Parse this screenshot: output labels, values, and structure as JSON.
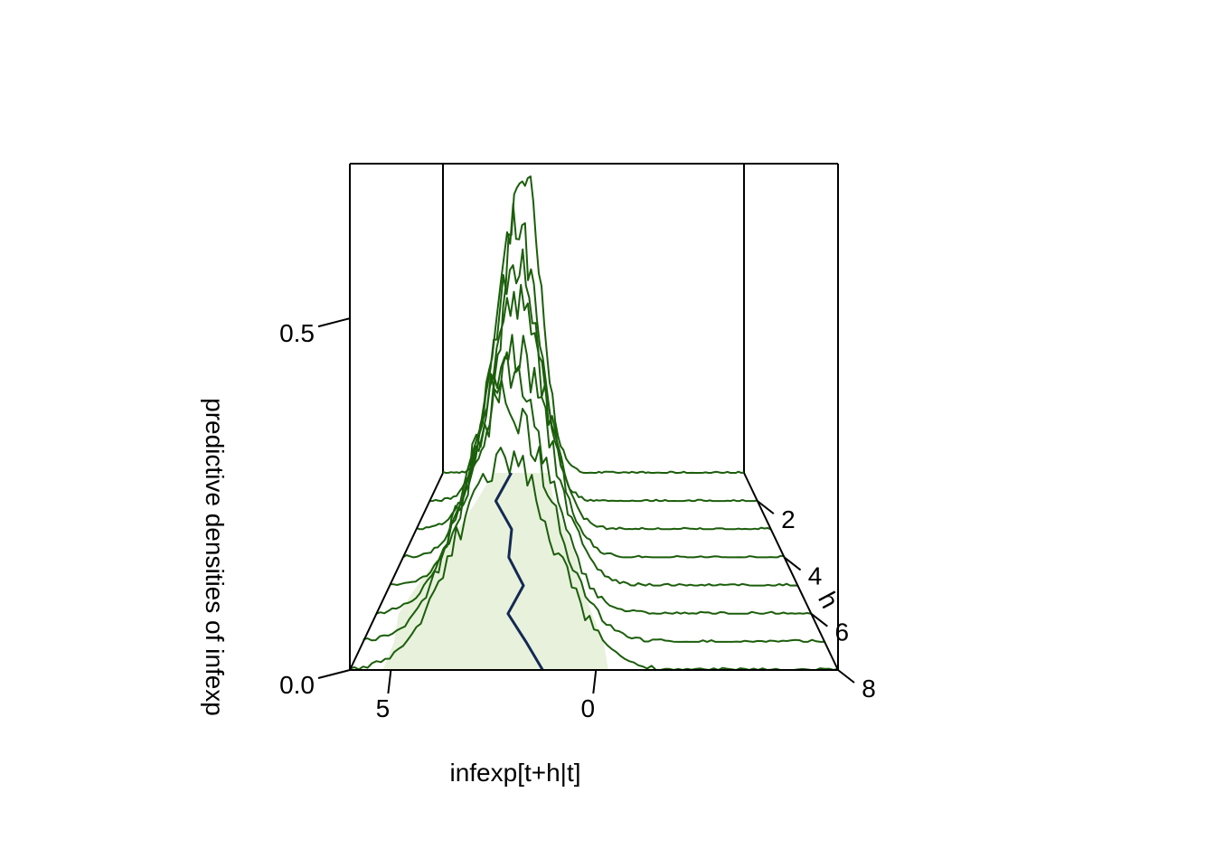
{
  "chart_data": {
    "type": "line",
    "subtype": "3d-perspective-densities",
    "title": "",
    "xlabel": "infexp[t+h|t]",
    "ylabel": "h",
    "zlabel": "predictive densities of infexp",
    "x_ticks": [
      "5",
      "0"
    ],
    "y_ticks": [
      "2",
      "4",
      "6",
      "8"
    ],
    "z_ticks": [
      "0.0",
      "0.5"
    ],
    "xlim": [
      6.0,
      -5.9
    ],
    "ylim": [
      1,
      8
    ],
    "zlim": [
      0,
      0.72
    ],
    "x_axis_reversed": true,
    "grid": false,
    "legend": "none",
    "colors": {
      "density_line": "#1b5e0b",
      "median_line": "#142a54",
      "band_fill": "#e8f1dc",
      "axes": "#000000"
    },
    "series": [
      {
        "h": 1,
        "mean": 2.85,
        "sd": 0.7,
        "peak": 0.7
      },
      {
        "h": 2,
        "mean": 2.85,
        "sd": 0.8,
        "peak": 0.58
      },
      {
        "h": 3,
        "mean": 2.62,
        "sd": 0.9,
        "peak": 0.52
      },
      {
        "h": 4,
        "mean": 2.47,
        "sd": 0.98,
        "peak": 0.46
      },
      {
        "h": 5,
        "mean": 2.35,
        "sd": 1.05,
        "peak": 0.4
      },
      {
        "h": 6,
        "mean": 2.4,
        "sd": 1.1,
        "peak": 0.38
      },
      {
        "h": 7,
        "mean": 2.3,
        "sd": 1.15,
        "peak": 0.36
      },
      {
        "h": 8,
        "mean": 2.22,
        "sd": 1.2,
        "peak": 0.3
      }
    ],
    "median": [
      {
        "h": 1,
        "x": 3.3
      },
      {
        "h": 2,
        "x": 3.6
      },
      {
        "h": 3,
        "x": 2.8
      },
      {
        "h": 4,
        "x": 2.7
      },
      {
        "h": 5,
        "x": 2.1
      },
      {
        "h": 6,
        "x": 2.4
      },
      {
        "h": 7,
        "x": 1.8
      },
      {
        "h": 8,
        "x": 1.3
      }
    ],
    "band": [
      {
        "h": 1,
        "lo": 1.8,
        "hi": 4.0
      },
      {
        "h": 2,
        "lo": 1.5,
        "hi": 4.3
      },
      {
        "h": 3,
        "lo": 1.0,
        "hi": 4.6
      },
      {
        "h": 4,
        "lo": 0.6,
        "hi": 4.9
      },
      {
        "h": 5,
        "lo": 0.4,
        "hi": 5.2
      },
      {
        "h": 6,
        "lo": 0.1,
        "hi": 5.4
      },
      {
        "h": 7,
        "lo": -0.2,
        "hi": 5.2
      },
      {
        "h": 8,
        "lo": -0.3,
        "hi": 5.2
      }
    ]
  }
}
